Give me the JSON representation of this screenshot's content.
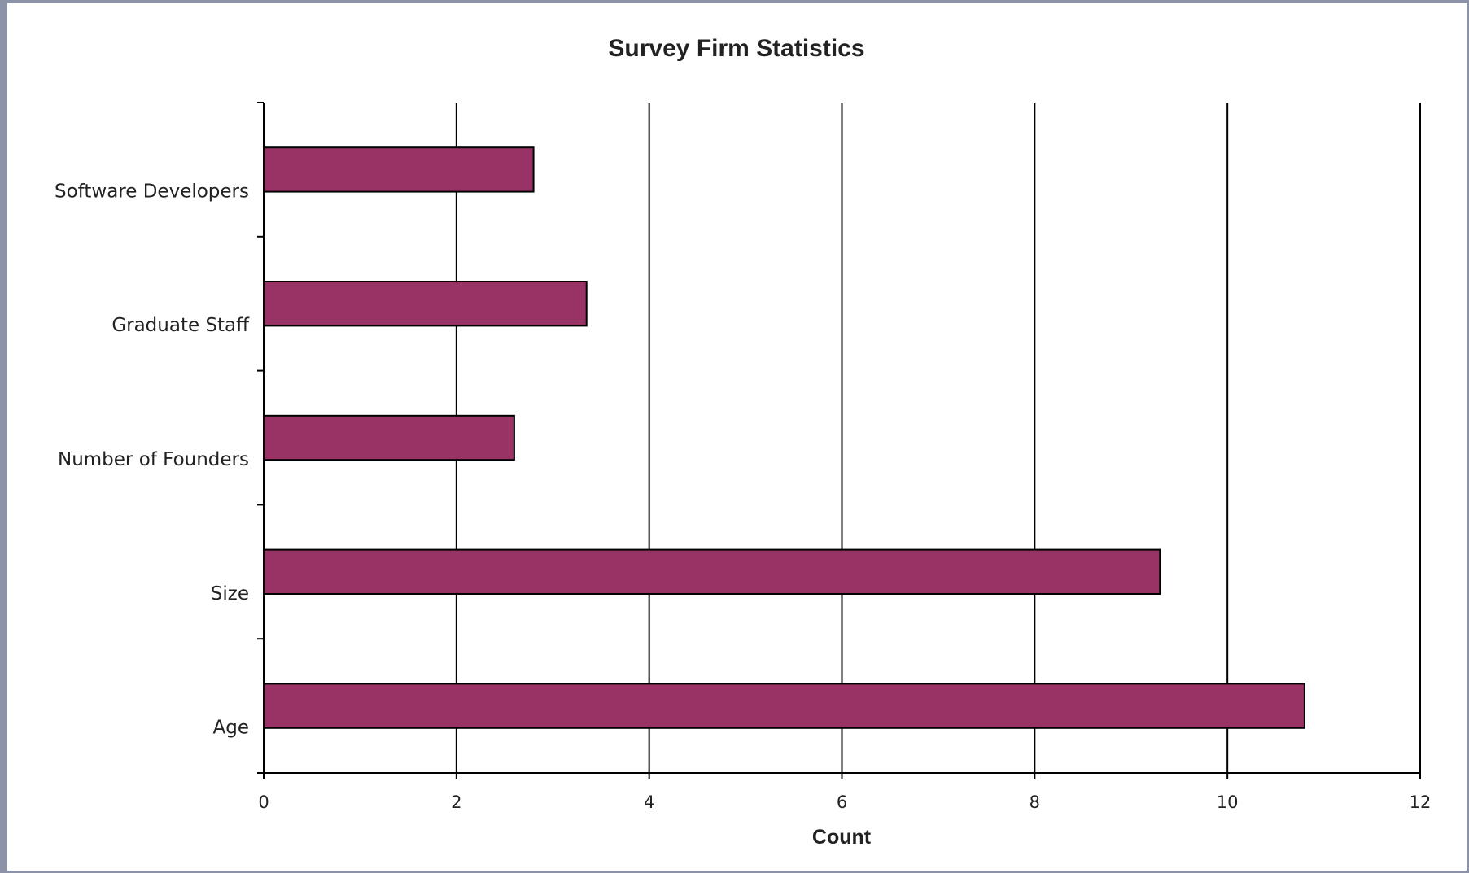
{
  "chart_data": {
    "type": "bar",
    "orientation": "horizontal",
    "title": "Survey Firm Statistics",
    "xlabel": "Count",
    "ylabel": "",
    "categories": [
      "Software Developers",
      "Graduate Staff",
      "Number of Founders",
      "Size",
      "Age"
    ],
    "values": [
      2.8,
      3.35,
      2.6,
      9.3,
      10.8
    ],
    "xlim": [
      0,
      12
    ],
    "xticks": [
      0,
      2,
      4,
      6,
      8,
      10,
      12
    ],
    "grid": "vertical",
    "legend": "none",
    "bar_color": "#993366",
    "bar_edge_color": "#000000"
  }
}
